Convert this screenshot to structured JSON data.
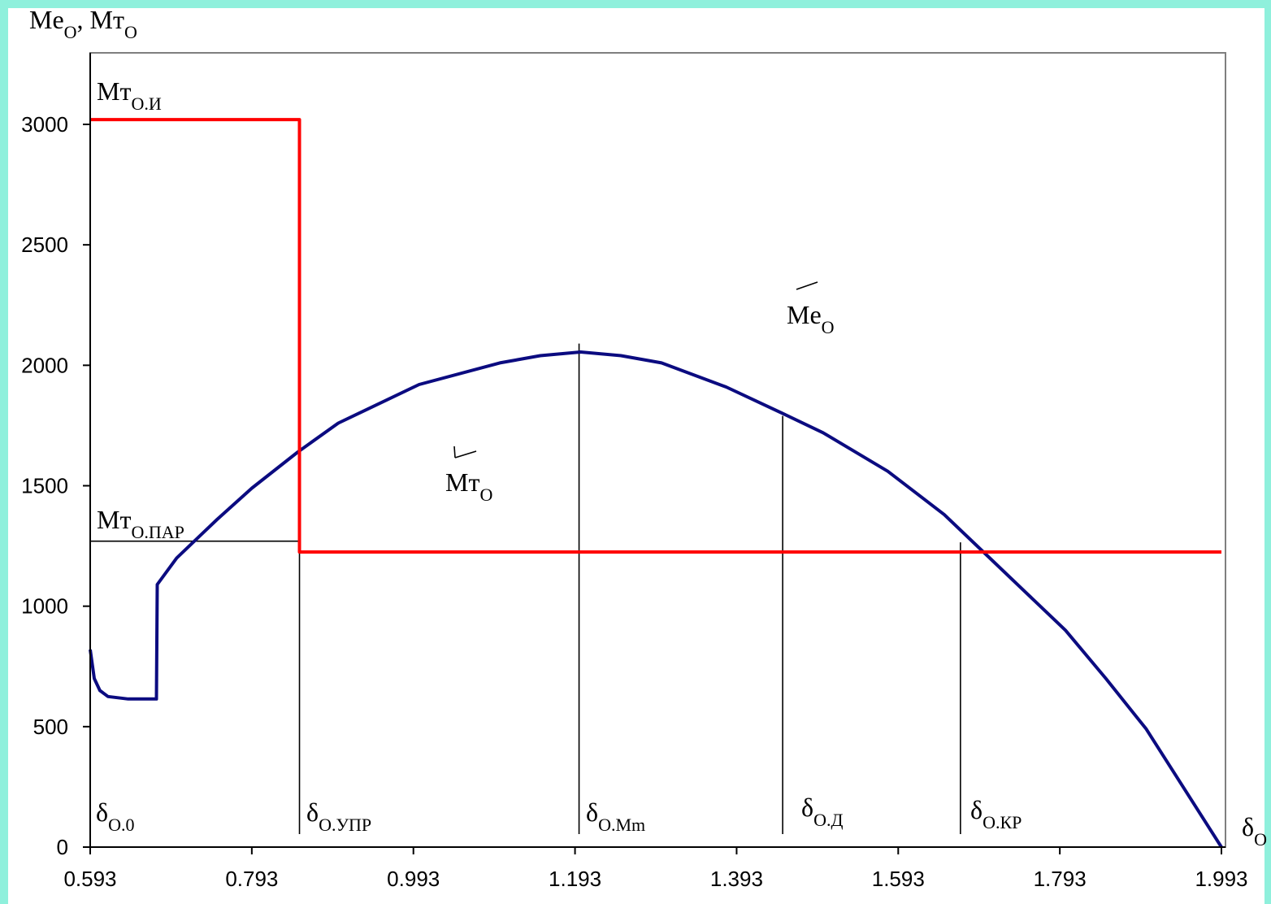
{
  "chart_data": {
    "type": "line",
    "y_axis_label": {
      "main": "Me",
      "sub": "O",
      "sep": ", ",
      "main2": "Мт",
      "sub2": "О"
    },
    "x_axis_label": {
      "main": "δ",
      "sub": "О"
    },
    "xlim": [
      0.593,
      1.993
    ],
    "ylim": [
      0,
      3300
    ],
    "x_ticks": [
      "0.593",
      "0.793",
      "0.993",
      "1.193",
      "1.393",
      "1.593",
      "1.793",
      "1.993"
    ],
    "y_ticks": [
      "0",
      "500",
      "1000",
      "1500",
      "2000",
      "2500",
      "3000"
    ],
    "grid": false,
    "series": [
      {
        "id": "me",
        "color": "#0b0b80",
        "x": [
          0.593,
          0.598,
          0.605,
          0.615,
          0.64,
          0.675,
          0.676,
          0.7,
          0.75,
          0.793,
          0.85,
          0.9,
          1.0,
          1.1,
          1.15,
          1.2,
          1.25,
          1.3,
          1.38,
          1.45,
          1.5,
          1.58,
          1.65,
          1.7,
          1.75,
          1.8,
          1.85,
          1.9,
          1.993
        ],
        "y": [
          820,
          700,
          650,
          625,
          615,
          615,
          1090,
          1200,
          1360,
          1490,
          1640,
          1760,
          1920,
          2010,
          2040,
          2055,
          2040,
          2010,
          1910,
          1800,
          1720,
          1560,
          1380,
          1220,
          1060,
          900,
          700,
          490,
          0
        ]
      },
      {
        "id": "mt",
        "color": "#ff0000",
        "x": [
          0.593,
          0.852,
          0.852,
          1.993
        ],
        "y": [
          3020,
          3020,
          1225,
          1225
        ]
      }
    ],
    "vertical_markers": [
      {
        "x": 0.852,
        "y_top": 1670
      },
      {
        "x": 1.198,
        "y_top": 2090
      },
      {
        "x": 1.45,
        "y_top": 1790
      },
      {
        "x": 1.67,
        "y_top": 1265
      }
    ],
    "reference_line": {
      "y": 1270,
      "x_from": 0.593,
      "x_to": 0.852
    },
    "annotations": [
      {
        "id": "mt-oi",
        "main": "Мт",
        "sub": "О.И"
      },
      {
        "id": "mt-opar",
        "main": "Мт",
        "sub": "О.ПАР"
      },
      {
        "id": "me-curve",
        "main": "Me",
        "sub": "O"
      },
      {
        "id": "mt-curve",
        "main": "Мт",
        "sub": "О"
      },
      {
        "id": "d-o0",
        "main": "δ",
        "sub": "О.0"
      },
      {
        "id": "d-oupr",
        "main": "δ",
        "sub": "О.УПР"
      },
      {
        "id": "d-omm",
        "main": "δ",
        "sub": "О.Mm"
      },
      {
        "id": "d-od",
        "main": "δ",
        "sub": "О.Д"
      },
      {
        "id": "d-okr",
        "main": "δ",
        "sub": "О.КР"
      }
    ]
  }
}
